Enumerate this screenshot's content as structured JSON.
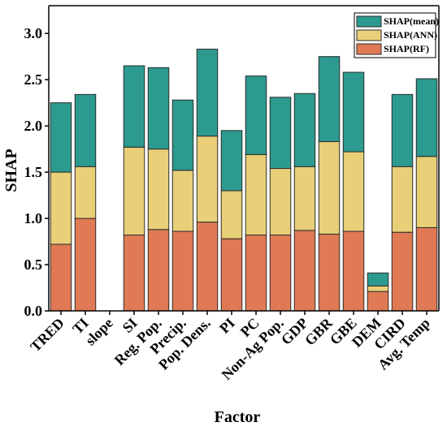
{
  "chart_data": {
    "type": "bar",
    "stacked": true,
    "xlabel": "Factor",
    "ylabel": "SHAP",
    "ylim": [
      0,
      3.3
    ],
    "yticks": [
      "0.0",
      "0.5",
      "1.0",
      "1.5",
      "2.0",
      "2.5",
      "3.0"
    ],
    "ytick_values": [
      0,
      0.5,
      1.0,
      1.5,
      2.0,
      2.5,
      3.0
    ],
    "grid": false,
    "legend_position": "top-right",
    "categories": [
      "TRED",
      "TI",
      "slope",
      "SI",
      "Reg. Pop.",
      "Precip.",
      "Pop. Dens.",
      "PI",
      "PC",
      "Non-Ag Pop.",
      "GDP",
      "GBR",
      "GBE",
      "DEM",
      "CIRD",
      "Avg. Temp"
    ],
    "series": [
      {
        "name": "SHAP(RF)",
        "color": "#E07A54",
        "values": [
          0.72,
          1.0,
          0.0,
          0.82,
          0.88,
          0.86,
          0.96,
          0.78,
          0.82,
          0.82,
          0.87,
          0.83,
          0.86,
          0.21,
          0.85,
          0.9
        ]
      },
      {
        "name": "SHAP(ANN)",
        "color": "#E8CF78",
        "values": [
          0.78,
          0.56,
          0.0,
          0.95,
          0.87,
          0.66,
          0.93,
          0.52,
          0.87,
          0.72,
          0.69,
          1.0,
          0.86,
          0.06,
          0.71,
          0.77
        ]
      },
      {
        "name": "SHAP(mean)",
        "color": "#2C9A8E",
        "values": [
          0.75,
          0.78,
          0.0,
          0.88,
          0.88,
          0.76,
          0.94,
          0.65,
          0.85,
          0.77,
          0.79,
          0.92,
          0.86,
          0.14,
          0.78,
          0.84
        ]
      }
    ],
    "legend_order": [
      "SHAP(mean)",
      "SHAP(ANN)",
      "SHAP(RF)"
    ]
  }
}
